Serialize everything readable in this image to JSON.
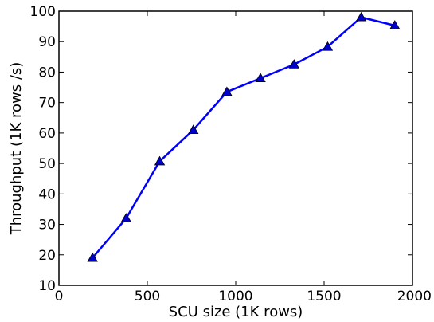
{
  "chart_data": {
    "type": "line",
    "title": "",
    "xlabel": "SCU size (1K rows)",
    "ylabel": "Throughput (1K rows /s)",
    "xlim": [
      0,
      2000
    ],
    "ylim": [
      10,
      100
    ],
    "xticks": [
      0,
      500,
      1000,
      1500,
      2000
    ],
    "yticks": [
      10,
      20,
      30,
      40,
      50,
      60,
      70,
      80,
      90,
      100
    ],
    "xtick_labels": [
      "0",
      "500",
      "1000",
      "1500",
      "2000"
    ],
    "ytick_labels": [
      "10",
      "20",
      "30",
      "40",
      "50",
      "60",
      "70",
      "80",
      "90",
      "100"
    ],
    "grid": false,
    "legend": "none",
    "series": [
      {
        "marker": "triangle",
        "color": "#0000ff",
        "marker_color": "#0000cc",
        "x": [
          190,
          380,
          570,
          760,
          950,
          1140,
          1330,
          1520,
          1710,
          1900
        ],
        "y": [
          19,
          32,
          50.7,
          61,
          73.5,
          78,
          82.5,
          88.3,
          98,
          95.3
        ]
      }
    ]
  }
}
